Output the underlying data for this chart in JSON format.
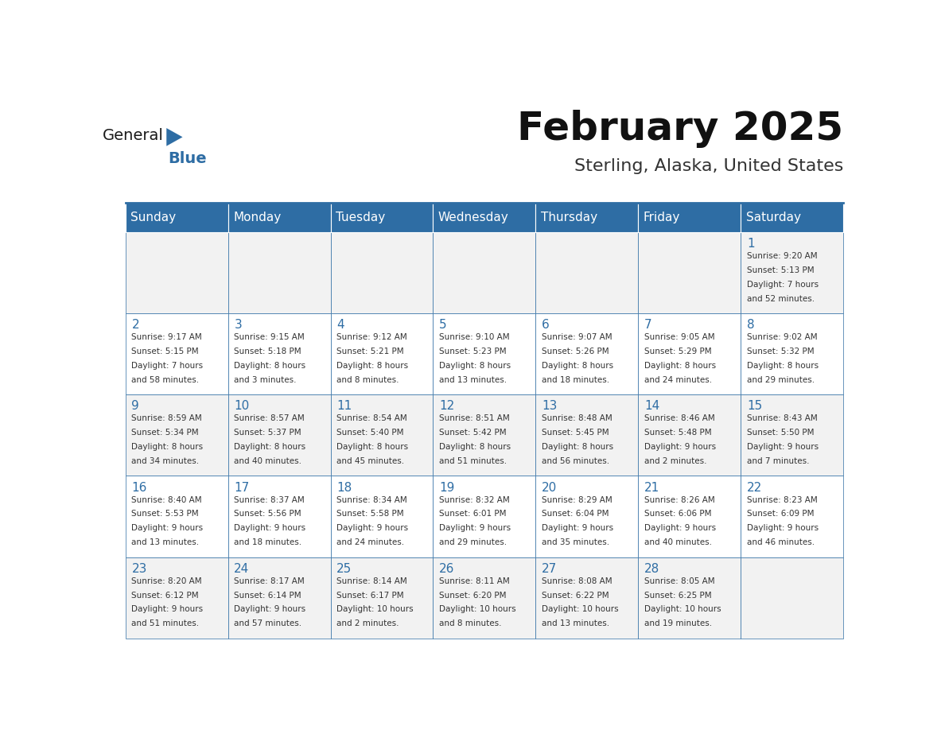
{
  "title": "February 2025",
  "subtitle": "Sterling, Alaska, United States",
  "header_bg": "#2E6DA4",
  "header_text_color": "#FFFFFF",
  "cell_bg_light": "#F2F2F2",
  "cell_bg_white": "#FFFFFF",
  "day_headers": [
    "Sunday",
    "Monday",
    "Tuesday",
    "Wednesday",
    "Thursday",
    "Friday",
    "Saturday"
  ],
  "days": [
    {
      "day": 1,
      "col": 6,
      "row": 0,
      "sunrise": "9:20 AM",
      "sunset": "5:13 PM",
      "daylight_line1": "7 hours",
      "daylight_line2": "and 52 minutes."
    },
    {
      "day": 2,
      "col": 0,
      "row": 1,
      "sunrise": "9:17 AM",
      "sunset": "5:15 PM",
      "daylight_line1": "7 hours",
      "daylight_line2": "and 58 minutes."
    },
    {
      "day": 3,
      "col": 1,
      "row": 1,
      "sunrise": "9:15 AM",
      "sunset": "5:18 PM",
      "daylight_line1": "8 hours",
      "daylight_line2": "and 3 minutes."
    },
    {
      "day": 4,
      "col": 2,
      "row": 1,
      "sunrise": "9:12 AM",
      "sunset": "5:21 PM",
      "daylight_line1": "8 hours",
      "daylight_line2": "and 8 minutes."
    },
    {
      "day": 5,
      "col": 3,
      "row": 1,
      "sunrise": "9:10 AM",
      "sunset": "5:23 PM",
      "daylight_line1": "8 hours",
      "daylight_line2": "and 13 minutes."
    },
    {
      "day": 6,
      "col": 4,
      "row": 1,
      "sunrise": "9:07 AM",
      "sunset": "5:26 PM",
      "daylight_line1": "8 hours",
      "daylight_line2": "and 18 minutes."
    },
    {
      "day": 7,
      "col": 5,
      "row": 1,
      "sunrise": "9:05 AM",
      "sunset": "5:29 PM",
      "daylight_line1": "8 hours",
      "daylight_line2": "and 24 minutes."
    },
    {
      "day": 8,
      "col": 6,
      "row": 1,
      "sunrise": "9:02 AM",
      "sunset": "5:32 PM",
      "daylight_line1": "8 hours",
      "daylight_line2": "and 29 minutes."
    },
    {
      "day": 9,
      "col": 0,
      "row": 2,
      "sunrise": "8:59 AM",
      "sunset": "5:34 PM",
      "daylight_line1": "8 hours",
      "daylight_line2": "and 34 minutes."
    },
    {
      "day": 10,
      "col": 1,
      "row": 2,
      "sunrise": "8:57 AM",
      "sunset": "5:37 PM",
      "daylight_line1": "8 hours",
      "daylight_line2": "and 40 minutes."
    },
    {
      "day": 11,
      "col": 2,
      "row": 2,
      "sunrise": "8:54 AM",
      "sunset": "5:40 PM",
      "daylight_line1": "8 hours",
      "daylight_line2": "and 45 minutes."
    },
    {
      "day": 12,
      "col": 3,
      "row": 2,
      "sunrise": "8:51 AM",
      "sunset": "5:42 PM",
      "daylight_line1": "8 hours",
      "daylight_line2": "and 51 minutes."
    },
    {
      "day": 13,
      "col": 4,
      "row": 2,
      "sunrise": "8:48 AM",
      "sunset": "5:45 PM",
      "daylight_line1": "8 hours",
      "daylight_line2": "and 56 minutes."
    },
    {
      "day": 14,
      "col": 5,
      "row": 2,
      "sunrise": "8:46 AM",
      "sunset": "5:48 PM",
      "daylight_line1": "9 hours",
      "daylight_line2": "and 2 minutes."
    },
    {
      "day": 15,
      "col": 6,
      "row": 2,
      "sunrise": "8:43 AM",
      "sunset": "5:50 PM",
      "daylight_line1": "9 hours",
      "daylight_line2": "and 7 minutes."
    },
    {
      "day": 16,
      "col": 0,
      "row": 3,
      "sunrise": "8:40 AM",
      "sunset": "5:53 PM",
      "daylight_line1": "9 hours",
      "daylight_line2": "and 13 minutes."
    },
    {
      "day": 17,
      "col": 1,
      "row": 3,
      "sunrise": "8:37 AM",
      "sunset": "5:56 PM",
      "daylight_line1": "9 hours",
      "daylight_line2": "and 18 minutes."
    },
    {
      "day": 18,
      "col": 2,
      "row": 3,
      "sunrise": "8:34 AM",
      "sunset": "5:58 PM",
      "daylight_line1": "9 hours",
      "daylight_line2": "and 24 minutes."
    },
    {
      "day": 19,
      "col": 3,
      "row": 3,
      "sunrise": "8:32 AM",
      "sunset": "6:01 PM",
      "daylight_line1": "9 hours",
      "daylight_line2": "and 29 minutes."
    },
    {
      "day": 20,
      "col": 4,
      "row": 3,
      "sunrise": "8:29 AM",
      "sunset": "6:04 PM",
      "daylight_line1": "9 hours",
      "daylight_line2": "and 35 minutes."
    },
    {
      "day": 21,
      "col": 5,
      "row": 3,
      "sunrise": "8:26 AM",
      "sunset": "6:06 PM",
      "daylight_line1": "9 hours",
      "daylight_line2": "and 40 minutes."
    },
    {
      "day": 22,
      "col": 6,
      "row": 3,
      "sunrise": "8:23 AM",
      "sunset": "6:09 PM",
      "daylight_line1": "9 hours",
      "daylight_line2": "and 46 minutes."
    },
    {
      "day": 23,
      "col": 0,
      "row": 4,
      "sunrise": "8:20 AM",
      "sunset": "6:12 PM",
      "daylight_line1": "9 hours",
      "daylight_line2": "and 51 minutes."
    },
    {
      "day": 24,
      "col": 1,
      "row": 4,
      "sunrise": "8:17 AM",
      "sunset": "6:14 PM",
      "daylight_line1": "9 hours",
      "daylight_line2": "and 57 minutes."
    },
    {
      "day": 25,
      "col": 2,
      "row": 4,
      "sunrise": "8:14 AM",
      "sunset": "6:17 PM",
      "daylight_line1": "10 hours",
      "daylight_line2": "and 2 minutes."
    },
    {
      "day": 26,
      "col": 3,
      "row": 4,
      "sunrise": "8:11 AM",
      "sunset": "6:20 PM",
      "daylight_line1": "10 hours",
      "daylight_line2": "and 8 minutes."
    },
    {
      "day": 27,
      "col": 4,
      "row": 4,
      "sunrise": "8:08 AM",
      "sunset": "6:22 PM",
      "daylight_line1": "10 hours",
      "daylight_line2": "and 13 minutes."
    },
    {
      "day": 28,
      "col": 5,
      "row": 4,
      "sunrise": "8:05 AM",
      "sunset": "6:25 PM",
      "daylight_line1": "10 hours",
      "daylight_line2": "and 19 minutes."
    }
  ],
  "n_rows": 5,
  "n_cols": 7,
  "logo_general_color": "#1a1a1a",
  "logo_blue_color": "#2E6DA4",
  "border_color": "#2E6DA4",
  "text_color": "#333333",
  "day_num_color": "#2E6DA4"
}
